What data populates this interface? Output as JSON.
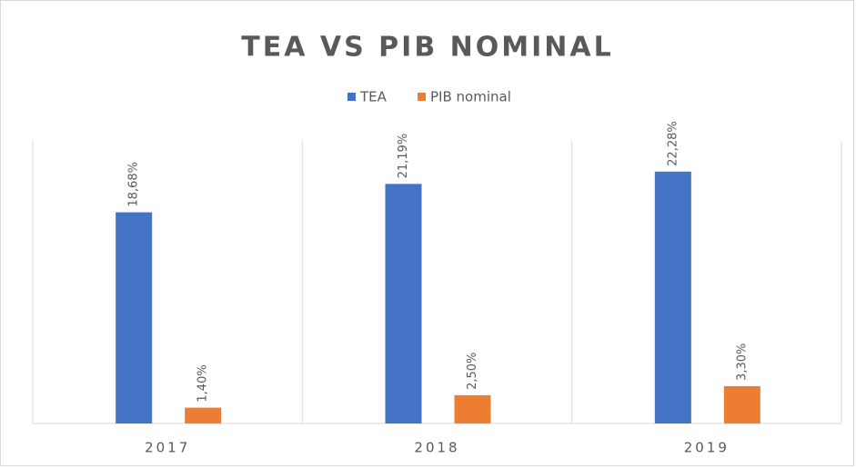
{
  "chart_data": {
    "type": "bar",
    "title": "TEA VS PIB NOMINAL",
    "categories": [
      "2017",
      "2018",
      "2019"
    ],
    "series": [
      {
        "name": "TEA",
        "color": "#4472c4",
        "values": [
          18.68,
          21.19,
          22.28
        ],
        "value_labels": [
          "18,68%",
          "21,19%",
          "22,28%"
        ]
      },
      {
        "name": "PIB nominal",
        "color": "#ed7d31",
        "values": [
          1.4,
          2.5,
          3.3
        ],
        "value_labels": [
          "1,40%",
          "2,50%",
          "3,30%"
        ]
      }
    ],
    "ylim": [
      0,
      25
    ],
    "legend": "top"
  }
}
